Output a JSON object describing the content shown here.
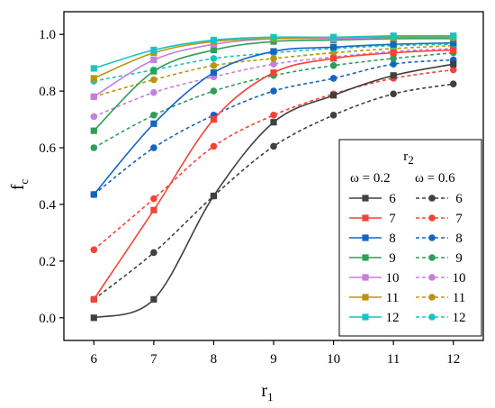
{
  "chart_data": {
    "type": "line",
    "xlabel": "r",
    "xlabel_sub": "1",
    "ylabel": "f",
    "ylabel_sub": "c",
    "xlim": [
      5.5,
      12.5
    ],
    "ylim": [
      -0.08,
      1.08
    ],
    "x_ticks": [
      6,
      7,
      8,
      9,
      10,
      11,
      12
    ],
    "y_ticks": [
      0.0,
      0.2,
      0.4,
      0.6,
      0.8,
      1.0
    ],
    "x_tick_labels": [
      "6",
      "7",
      "8",
      "9",
      "10",
      "11",
      "12"
    ],
    "y_tick_labels": [
      "0.0",
      "0.2",
      "0.4",
      "0.6",
      "0.8",
      "1.0"
    ],
    "grid": false,
    "legend": {
      "placement": "right",
      "title": "r",
      "title_sub": "2",
      "col_headers": [
        "ω = 0.2",
        "ω = 0.6"
      ]
    },
    "x": [
      6,
      7,
      8,
      9,
      10,
      11,
      12
    ],
    "series": [
      {
        "name": "6",
        "omega": "0.2",
        "style": "solid",
        "marker": "square",
        "color": "#404040",
        "values": [
          0.0,
          0.065,
          0.43,
          0.69,
          0.785,
          0.855,
          0.895
        ]
      },
      {
        "name": "7",
        "omega": "0.2",
        "style": "solid",
        "marker": "square",
        "color": "#f44336",
        "values": [
          0.065,
          0.38,
          0.7,
          0.865,
          0.915,
          0.935,
          0.945
        ]
      },
      {
        "name": "8",
        "omega": "0.2",
        "style": "solid",
        "marker": "square",
        "color": "#1565c0",
        "values": [
          0.435,
          0.685,
          0.865,
          0.94,
          0.955,
          0.965,
          0.97
        ]
      },
      {
        "name": "9",
        "omega": "0.2",
        "style": "solid",
        "marker": "square",
        "color": "#2e9e5a",
        "values": [
          0.66,
          0.87,
          0.945,
          0.975,
          0.98,
          0.985,
          0.985
        ]
      },
      {
        "name": "10",
        "omega": "0.2",
        "style": "solid",
        "marker": "square",
        "color": "#c57fe0",
        "values": [
          0.78,
          0.91,
          0.965,
          0.985,
          0.985,
          0.99,
          0.99
        ]
      },
      {
        "name": "11",
        "omega": "0.2",
        "style": "solid",
        "marker": "square",
        "color": "#b8960c",
        "values": [
          0.845,
          0.935,
          0.975,
          0.985,
          0.99,
          0.99,
          0.99
        ]
      },
      {
        "name": "12",
        "omega": "0.2",
        "style": "solid",
        "marker": "square",
        "color": "#17c4c4",
        "values": [
          0.88,
          0.945,
          0.98,
          0.99,
          0.99,
          0.995,
          0.995
        ]
      },
      {
        "name": "6",
        "omega": "0.6",
        "style": "dashed",
        "marker": "circle",
        "color": "#404040",
        "values": [
          0.065,
          0.23,
          0.43,
          0.605,
          0.715,
          0.79,
          0.825
        ]
      },
      {
        "name": "7",
        "omega": "0.6",
        "style": "dashed",
        "marker": "circle",
        "color": "#f44336",
        "values": [
          0.24,
          0.42,
          0.605,
          0.715,
          0.79,
          0.845,
          0.875
        ]
      },
      {
        "name": "8",
        "omega": "0.6",
        "style": "dashed",
        "marker": "circle",
        "color": "#1565c0",
        "values": [
          0.435,
          0.6,
          0.715,
          0.8,
          0.845,
          0.895,
          0.91
        ]
      },
      {
        "name": "9",
        "omega": "0.6",
        "style": "dashed",
        "marker": "circle",
        "color": "#2e9e5a",
        "values": [
          0.6,
          0.715,
          0.8,
          0.855,
          0.89,
          0.915,
          0.935
        ]
      },
      {
        "name": "10",
        "omega": "0.6",
        "style": "dashed",
        "marker": "circle",
        "color": "#c57fe0",
        "values": [
          0.71,
          0.795,
          0.85,
          0.895,
          0.92,
          0.94,
          0.95
        ]
      },
      {
        "name": "11",
        "omega": "0.6",
        "style": "dashed",
        "marker": "circle",
        "color": "#b8960c",
        "values": [
          0.78,
          0.84,
          0.89,
          0.915,
          0.935,
          0.95,
          0.96
        ]
      },
      {
        "name": "12",
        "omega": "0.6",
        "style": "dashed",
        "marker": "circle",
        "color": "#17c4c4",
        "values": [
          0.835,
          0.875,
          0.915,
          0.935,
          0.95,
          0.96,
          0.965
        ]
      }
    ]
  }
}
